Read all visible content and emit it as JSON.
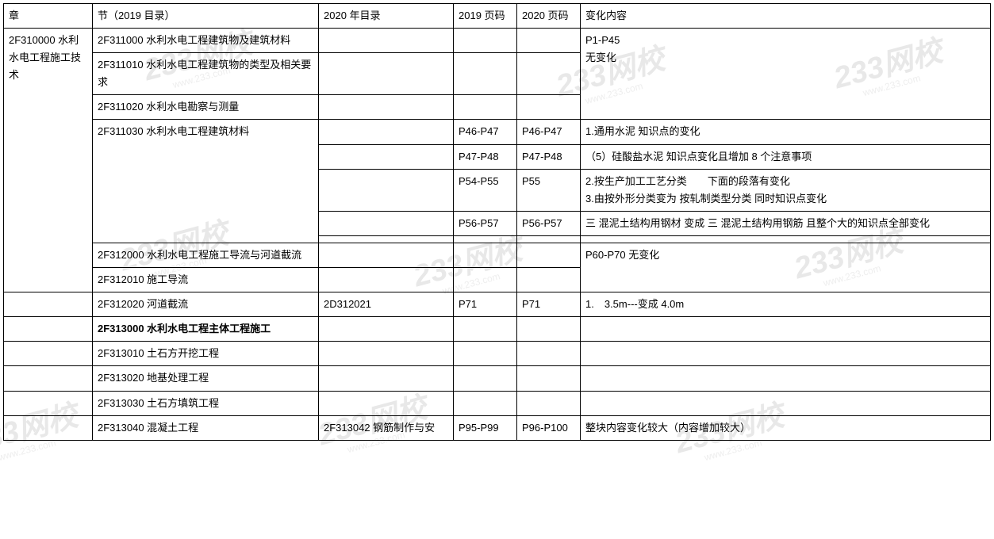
{
  "watermark": {
    "main": "233网校",
    "sub": "www.233.com"
  },
  "headers": {
    "chapter": "章",
    "section": "节（2019 目录）",
    "dir2020": "2020 年目录",
    "page2019": "2019 页码",
    "page2020": "2020 页码",
    "changes": "变化内容"
  },
  "chapter_label": "2F310000 水利水电工程施工技术",
  "rows": [
    {
      "section": "2F311000 水利水电工程建筑物及建筑材料",
      "dir2020": "",
      "p2019": "",
      "p2020": "",
      "changes": "P1-P45\n无变化"
    },
    {
      "section": "2F311010 水利水电工程建筑物的类型及相关要求",
      "dir2020": "",
      "p2019": "",
      "p2020": "",
      "changes": ""
    },
    {
      "section": "2F311020 水利水电勘察与测量",
      "dir2020": "",
      "p2019": "",
      "p2020": "",
      "changes": ""
    },
    {
      "section": "2F311030  水利水电工程建筑材料",
      "dir2020": "",
      "p2019": "P46-P47",
      "p2020": "P46-P47",
      "changes": "1.通用水泥 知识点的变化"
    },
    {
      "section": "",
      "dir2020": "",
      "p2019": "P47-P48",
      "p2020": "P47-P48",
      "changes": "（5）硅酸盐水泥 知识点变化且增加 8 个注意事项"
    },
    {
      "section": "",
      "dir2020": "",
      "p2019": "P54-P55",
      "p2020": "P55",
      "changes": "2.按生产加工工艺分类　　下面的段落有变化\n3.由按外形分类变为 按轧制类型分类 同时知识点变化"
    },
    {
      "section": "",
      "dir2020": "",
      "p2019": "P56-P57",
      "p2020": "P56-P57",
      "changes": "三 混泥土结构用钢材 变成 三 混泥土结构用钢筋 且整个大的知识点全部变化"
    },
    {
      "section": "",
      "dir2020": "",
      "p2019": "",
      "p2020": "",
      "changes": ""
    },
    {
      "section": "2F312000 水利水电工程施工导流与河道截流",
      "dir2020": "",
      "p2019": "",
      "p2020": "",
      "changes": "P60-P70 无变化"
    },
    {
      "section": "2F312010 施工导流",
      "dir2020": "",
      "p2019": "",
      "p2020": "",
      "changes": ""
    },
    {
      "section": "2F312020 河道截流",
      "dir2020": "2D312021",
      "p2019": "P71",
      "p2020": "P71",
      "changes": "1.　3.5m---变成 4.0m"
    },
    {
      "section": "2F313000 水利水电工程主体工程施工",
      "bold": true,
      "dir2020": "",
      "p2019": "",
      "p2020": "",
      "changes": ""
    },
    {
      "section": "2F313010 土石方开挖工程",
      "dir2020": "",
      "p2019": "",
      "p2020": "",
      "changes": ""
    },
    {
      "section": "2F313020 地基处理工程",
      "dir2020": "",
      "p2019": "",
      "p2020": "",
      "changes": ""
    },
    {
      "section": "2F313030 土石方填筑工程",
      "dir2020": "",
      "p2019": "",
      "p2020": "",
      "changes": ""
    },
    {
      "section": "2F313040 混凝土工程",
      "dir2020": "2F313042 钢筋制作与安",
      "p2019": "P95-P99",
      "p2020": "P96-P100",
      "changes": "整块内容变化较大（内容增加较大）"
    }
  ],
  "table_style": {
    "border_color": "#000000",
    "background_color": "#ffffff",
    "font_size": 13,
    "watermark_color": "#e8e8e8"
  }
}
